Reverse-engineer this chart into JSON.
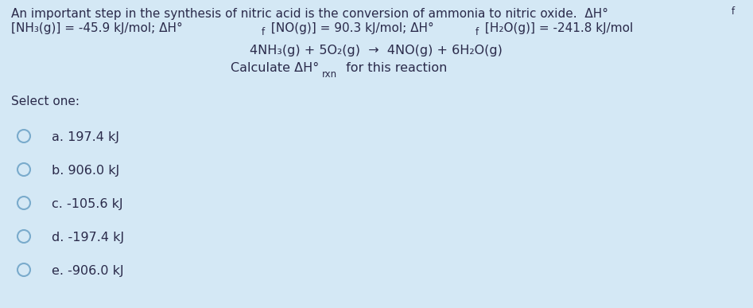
{
  "background_color": "#d4e8f5",
  "figsize": [
    9.47,
    3.87
  ],
  "dpi": 100,
  "text_color": "#2a2a4a",
  "font_size_main": 11.0,
  "font_size_options": 11.5,
  "circle_color": "#8ab4cc",
  "options": [
    "a. 197.4 kJ",
    "b. 906.0 kJ",
    "c. -105.6 kJ",
    "d. -197.4 kJ",
    "e. -906.0 kJ"
  ]
}
